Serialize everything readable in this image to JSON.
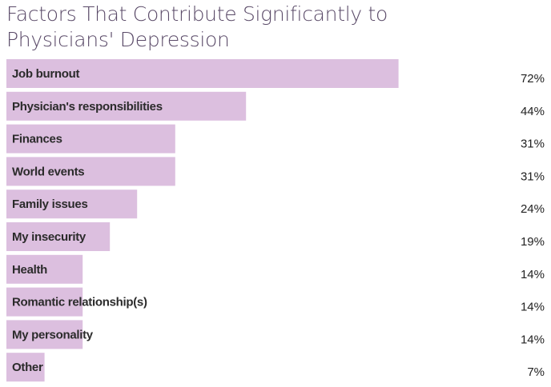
{
  "chart_data": {
    "type": "bar",
    "orientation": "horizontal",
    "title": "Factors That Contribute Significantly to Physicians' Depression",
    "categories": [
      "Job burnout",
      "Physician's responsibilities",
      "Finances",
      "World events",
      "Family issues",
      "My insecurity",
      "Health",
      "Romantic relationship(s)",
      "My personality",
      "Other"
    ],
    "values": [
      72,
      44,
      31,
      31,
      24,
      19,
      14,
      14,
      14,
      7
    ],
    "value_labels": [
      "72%",
      "44%",
      "31%",
      "31%",
      "24%",
      "19%",
      "14%",
      "14%",
      "14%",
      "7%"
    ],
    "xlim": [
      0,
      100
    ],
    "unit": "%",
    "grid": false,
    "legend": "none",
    "colors": {
      "bar": "#dcbfdf",
      "title": "#5a4a68"
    }
  }
}
